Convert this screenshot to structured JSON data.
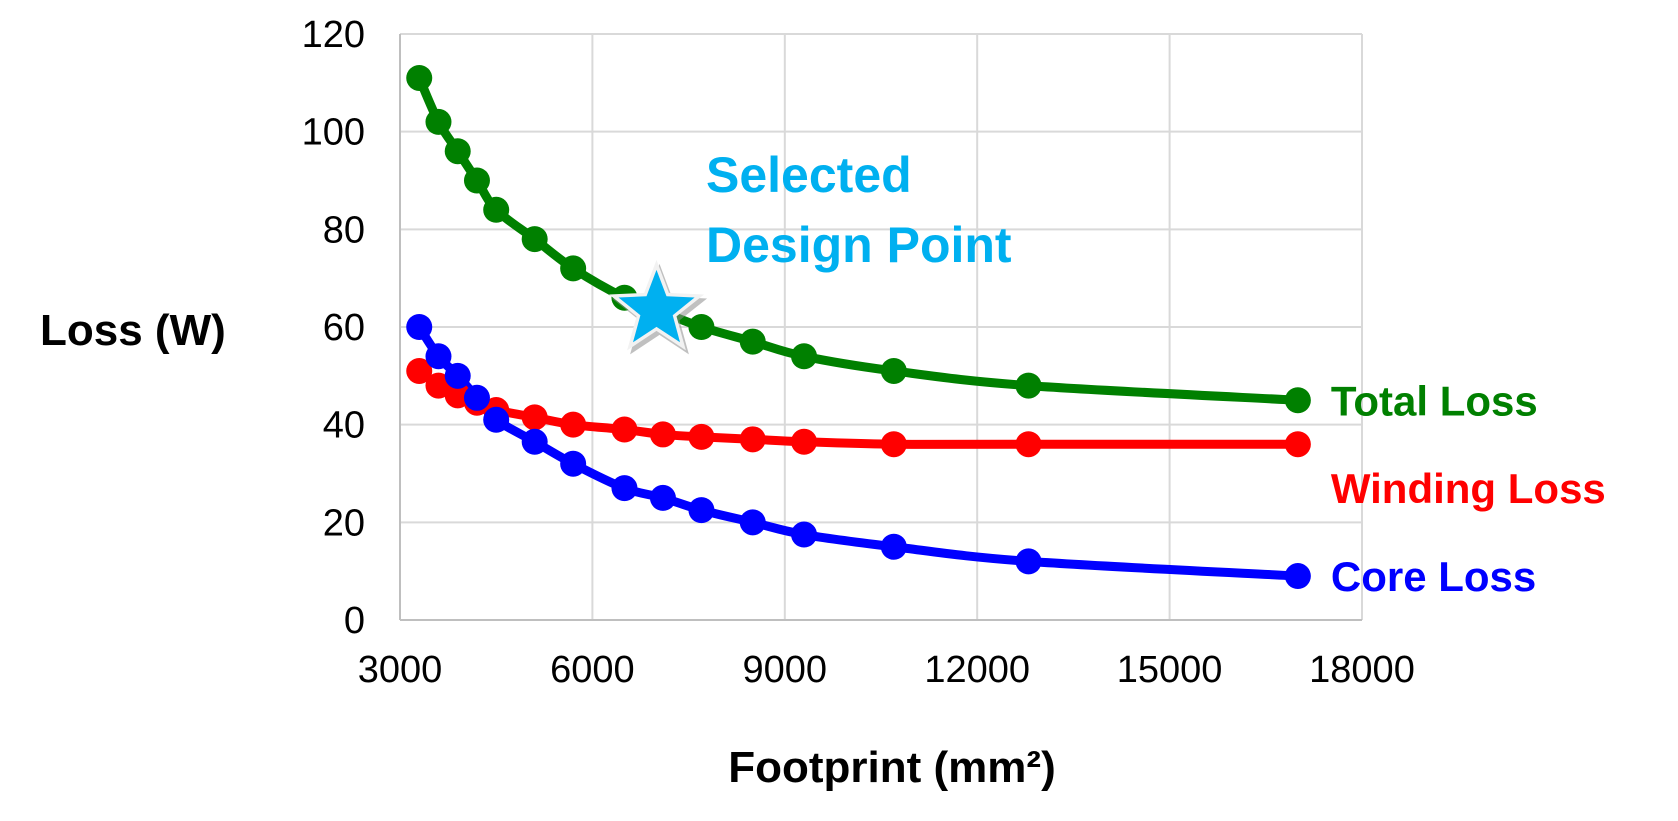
{
  "chart_data": {
    "type": "line",
    "title": "",
    "xlabel": "Footprint (mm²)",
    "ylabel": "Loss (W)",
    "xlim": [
      3000,
      18000
    ],
    "ylim": [
      0,
      120
    ],
    "xticks": [
      3000,
      6000,
      9000,
      12000,
      15000,
      18000
    ],
    "yticks": [
      0,
      20,
      40,
      60,
      80,
      100,
      120
    ],
    "xtick_labels": [
      "3000",
      "6000",
      "9000",
      "12000",
      "15000",
      "18000"
    ],
    "ytick_labels": [
      "0",
      "20",
      "40",
      "60",
      "80",
      "100",
      "120"
    ],
    "grid": true,
    "legend": "series labels at right end of lines",
    "series": [
      {
        "name": "Total Loss",
        "color": "#008000",
        "x": [
          3300,
          3600,
          3900,
          4200,
          4500,
          5100,
          5700,
          6500,
          7100,
          7700,
          8500,
          9300,
          10700,
          12800,
          17000
        ],
        "y": [
          111,
          102,
          96,
          90,
          84,
          78,
          72,
          66,
          63,
          60,
          57,
          54,
          51,
          48,
          45
        ]
      },
      {
        "name": "Winding Loss",
        "color": "#ff0000",
        "x": [
          3300,
          3600,
          3900,
          4200,
          4500,
          5100,
          5700,
          6500,
          7100,
          7700,
          8500,
          9300,
          10700,
          12800,
          17000
        ],
        "y": [
          51,
          48,
          46,
          44.5,
          43,
          41.5,
          40,
          39,
          38,
          37.5,
          37,
          36.5,
          36,
          36,
          36
        ]
      },
      {
        "name": "Core Loss",
        "color": "#0000ff",
        "x": [
          3300,
          3600,
          3900,
          4200,
          4500,
          5100,
          5700,
          6500,
          7100,
          7700,
          8500,
          9300,
          10700,
          12800,
          17000
        ],
        "y": [
          60,
          54,
          50,
          45.5,
          41,
          36.5,
          32,
          27,
          25,
          22.5,
          20,
          17.5,
          15,
          12,
          9
        ]
      }
    ],
    "annotation": {
      "lines": [
        "Selected",
        "Design Point"
      ],
      "color": "#00b0f0",
      "marker": "star",
      "x": 7000,
      "y": 63.5
    }
  }
}
